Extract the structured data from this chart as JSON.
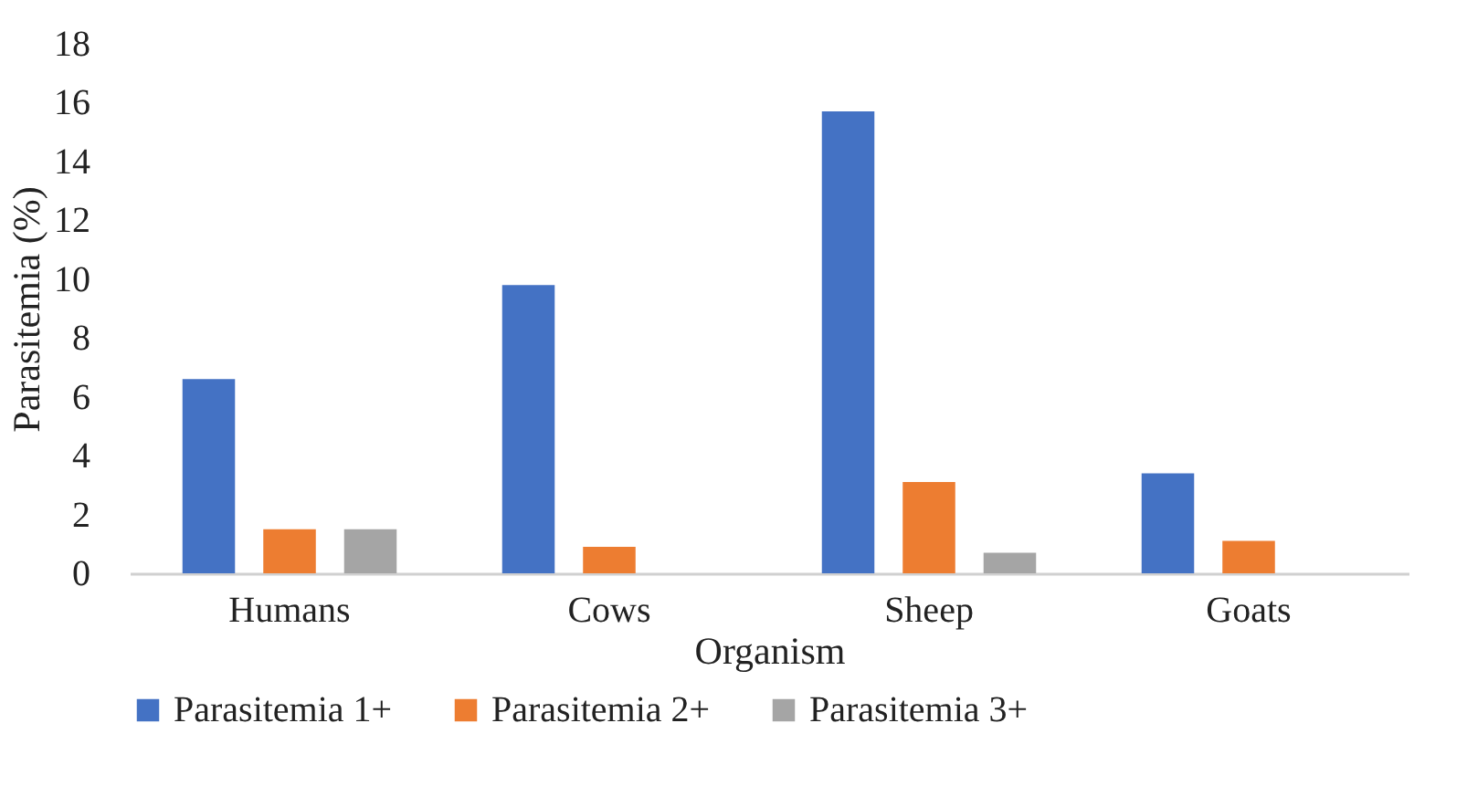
{
  "chart_data": {
    "type": "bar",
    "xlabel": "Organism",
    "ylabel": "Parasitemia (%)",
    "categories": [
      "Humans",
      "Cows",
      "Sheep",
      "Goats"
    ],
    "series": [
      {
        "name": "Parasitemia 1+",
        "color": "#4472c4",
        "values": [
          6.6,
          9.8,
          15.7,
          3.4
        ]
      },
      {
        "name": "Parasitemia 2+",
        "color": "#ed7d31",
        "values": [
          1.5,
          0.9,
          3.1,
          1.1
        ]
      },
      {
        "name": "Parasitemia 3+",
        "color": "#a5a5a5",
        "values": [
          1.5,
          null,
          0.7,
          null
        ]
      }
    ],
    "ylim": [
      0,
      18
    ],
    "yticks": [
      0,
      2,
      4,
      6,
      8,
      10,
      12,
      14,
      16,
      18
    ],
    "grid": false,
    "legend": "bottom"
  }
}
